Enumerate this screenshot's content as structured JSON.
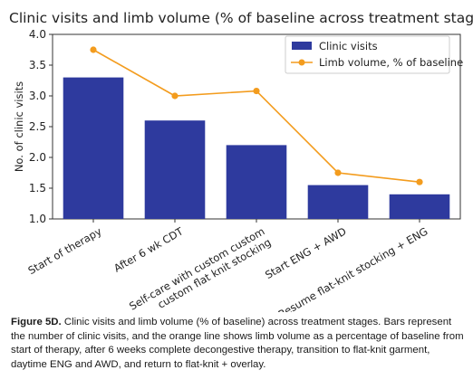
{
  "chart_data": {
    "type": "bar",
    "title": "Clinic visits and limb volume (% of baseline across treatment stages",
    "ylabel": "No. of clinic visits",
    "xlabel": "",
    "ylim": [
      1.0,
      4.0
    ],
    "yticks": [
      "1.0",
      "1.5",
      "2.0",
      "2.5",
      "3.0",
      "3.5",
      "4.0"
    ],
    "categories": [
      "Start of therapy",
      "After 6 wk CDT",
      "Self-care with custom custom custom flat knit stocking",
      "Start ENG + AWD",
      "Resume flat-knit stocking + ENG"
    ],
    "category_lines": [
      [
        "Start of therapy"
      ],
      [
        "After 6 wk CDT"
      ],
      [
        "Self-care with custom custom",
        "custom flat knit stocking"
      ],
      [
        "Start ENG + AWD"
      ],
      [
        "Resume flat-knit stocking + ENG"
      ]
    ],
    "series": [
      {
        "name": "Clinic visits",
        "type": "bar",
        "color": "#2e3a9e",
        "values": [
          3.3,
          2.6,
          2.2,
          1.55,
          1.4
        ]
      },
      {
        "name": "Limb volume, % of baseline",
        "type": "line",
        "color": "#f39c1e",
        "values": [
          3.75,
          3.0,
          3.08,
          1.75,
          1.6
        ]
      }
    ],
    "legend": "top-right",
    "grid": false
  },
  "caption": {
    "label": "Figure 5D.",
    "text": " Clinic visits and limb volume (% of baseline) across treatment stages.  Bars represent the number of clinic visits, and the orange line shows limb volume as a percentage of baseline from start of therapy, after 6 weeks complete decongestive therapy, transition to flat-knit garment, daytime ENG and AWD, and return to flat-knit + overlay."
  }
}
